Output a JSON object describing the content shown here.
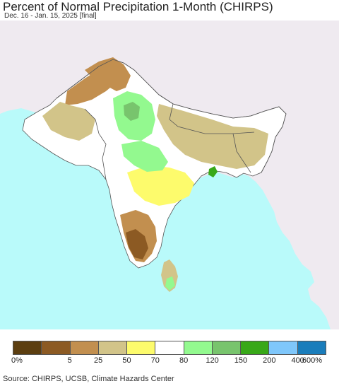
{
  "title": "Percent of Normal Precipitation 1-Month (CHIRPS)",
  "subtitle": "Dec. 16 - Jan. 15, 2025 [final]",
  "map": {
    "ocean_color": "#b9fafa",
    "land_outside_color": "#efeaf0",
    "normal_land_color": "#ffffff"
  },
  "legend": {
    "colors": [
      "#5c3e10",
      "#8c5a23",
      "#c28f4f",
      "#d2c489",
      "#fdfb6c",
      "#ffffff",
      "#93f98f",
      "#78c46d",
      "#38a818",
      "#7fc7fb",
      "#1a7dbb"
    ],
    "ticks": [
      "0%",
      "5",
      "25",
      "50",
      "70",
      "80",
      "120",
      "150",
      "200",
      "400",
      "600%"
    ]
  },
  "source": "Source: CHIRPS, UCSB, Climate Hazards Center"
}
